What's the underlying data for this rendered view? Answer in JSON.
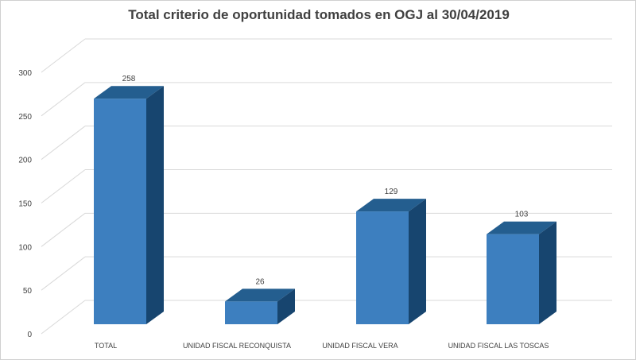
{
  "chart_data": {
    "type": "bar",
    "title": "Total criterio de oportunidad tomados en OGJ al 30/04/2019",
    "categories": [
      "TOTAL",
      "UNIDAD FISCAL RECONQUISTA",
      "UNIDAD FISCAL VERA",
      "UNIDAD FISCAL LAS TOSCAS"
    ],
    "values": [
      258,
      26,
      129,
      103
    ],
    "ylim": [
      0,
      300
    ],
    "yticks": [
      0,
      50,
      100,
      150,
      200,
      250,
      300
    ],
    "xlabel": "",
    "ylabel": "",
    "grid": true,
    "style": "3d-column",
    "colors": {
      "front": "#3d7fbf",
      "top": "#245e8f",
      "side": "#17456f",
      "grid": "#d9d9d9"
    }
  }
}
